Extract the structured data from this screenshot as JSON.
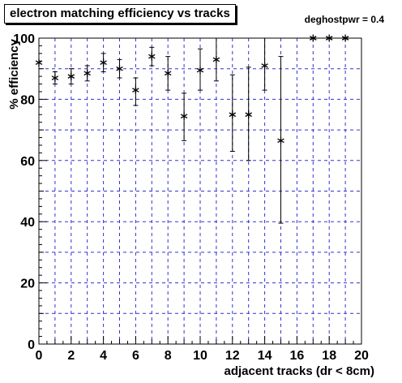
{
  "chart_data": {
    "type": "scatter",
    "title": "electron matching efficiency vs tracks",
    "annotation": "deghostpwr = 0.4",
    "xlabel": "adjacent tracks (dr < 8cm)",
    "ylabel": "% efficiency",
    "xlim": [
      0,
      20
    ],
    "ylim": [
      0,
      100
    ],
    "xticks": [
      0,
      2,
      4,
      6,
      8,
      10,
      12,
      14,
      16,
      18,
      20
    ],
    "yticks": [
      0,
      20,
      40,
      60,
      80,
      100
    ],
    "grid": true,
    "marker": "asterisk",
    "colors": {
      "grid": "#3333cc",
      "marker": "#000000",
      "axis": "#000000"
    },
    "series": [
      {
        "x": [
          0,
          1,
          2,
          3,
          4,
          5,
          6,
          7,
          8,
          9,
          10,
          11,
          12,
          13,
          14,
          15,
          17,
          18,
          19
        ],
        "y": [
          92,
          87,
          87.5,
          88.5,
          92,
          90,
          83,
          94,
          88.5,
          74.5,
          89.5,
          93,
          75,
          75,
          91,
          66.5,
          100,
          100,
          100
        ],
        "y_low": [
          92,
          85,
          85,
          86,
          89,
          87,
          78,
          91,
          83,
          66.5,
          83,
          86,
          63,
          60,
          83,
          39.5,
          100,
          100,
          100
        ],
        "y_high": [
          92,
          89,
          90,
          91,
          95,
          93,
          87,
          97,
          94,
          82,
          96.5,
          100,
          88,
          90.5,
          100,
          94,
          100,
          100,
          100
        ]
      }
    ]
  }
}
